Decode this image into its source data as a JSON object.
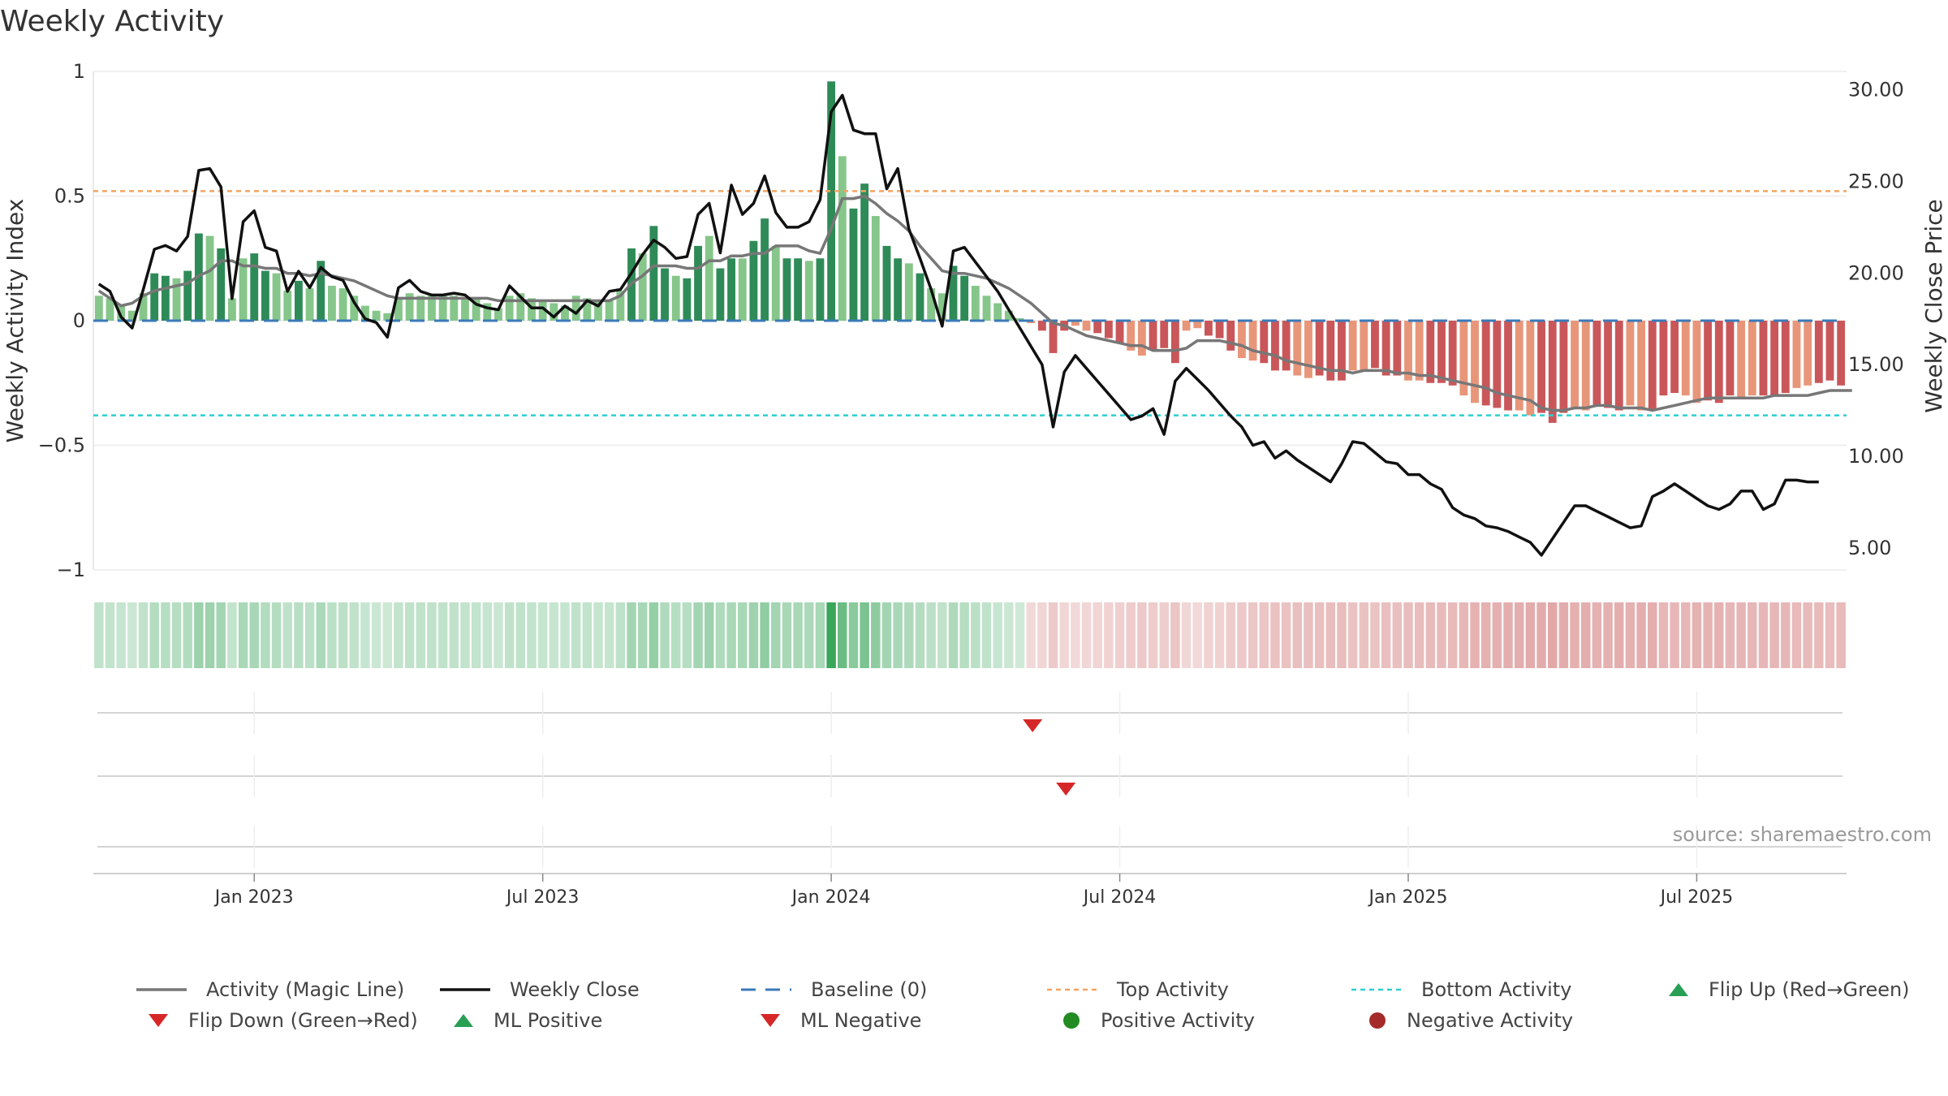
{
  "page": {
    "title": "Weekly Activity",
    "source": "source: sharemaestro.com"
  },
  "chart_data": {
    "type": "bar+line",
    "title": "Weekly Activity",
    "ylabel_left": "Weekly Activity Index",
    "ylabel_right": "Weekly Close Price",
    "ylim_left": [
      -1,
      1
    ],
    "ylim_right": [
      3.8,
      31.0
    ],
    "yticks_left": [
      1,
      0.5,
      0,
      -0.5,
      -1
    ],
    "yticks_left_labels": [
      "1",
      "0.5",
      "0",
      "−0.5",
      "−1"
    ],
    "yticks_right": [
      30,
      25,
      20,
      15,
      10,
      5
    ],
    "yticks_right_labels": [
      "30.00",
      "25.00",
      "20.00",
      "15.00",
      "10.00",
      "5.00"
    ],
    "x_start": "2022-10-03",
    "x_tick_labels": [
      "Jan 2023",
      "Jul 2023",
      "Jan 2024",
      "Jul 2024",
      "Jan 2025",
      "Jul 2025"
    ],
    "x_tick_week_index": [
      14,
      40,
      66,
      92,
      118,
      144
    ],
    "top_activity": 0.52,
    "bottom_activity": -0.38,
    "baseline": 0,
    "activity_index": [
      0.1,
      0.09,
      0.06,
      0.04,
      0.11,
      0.19,
      0.18,
      0.17,
      0.2,
      0.35,
      0.34,
      0.29,
      0.09,
      0.25,
      0.27,
      0.2,
      0.19,
      0.12,
      0.16,
      0.13,
      0.24,
      0.14,
      0.13,
      0.1,
      0.06,
      0.04,
      0.03,
      0.09,
      0.11,
      0.1,
      0.1,
      0.1,
      0.1,
      0.09,
      0.09,
      0.07,
      0.05,
      0.1,
      0.11,
      0.09,
      0.08,
      0.07,
      0.06,
      0.1,
      0.09,
      0.08,
      0.08,
      0.12,
      0.29,
      0.27,
      0.38,
      0.21,
      0.18,
      0.17,
      0.3,
      0.34,
      0.21,
      0.25,
      0.25,
      0.32,
      0.41,
      0.3,
      0.25,
      0.25,
      0.24,
      0.25,
      0.96,
      0.66,
      0.45,
      0.55,
      0.42,
      0.3,
      0.25,
      0.23,
      0.19,
      0.13,
      0.11,
      0.22,
      0.18,
      0.14,
      0.1,
      0.07,
      0.04,
      0.01,
      -0.01,
      -0.04,
      -0.13,
      -0.04,
      -0.02,
      -0.04,
      -0.05,
      -0.07,
      -0.09,
      -0.12,
      -0.14,
      -0.12,
      -0.11,
      -0.17,
      -0.04,
      -0.03,
      -0.06,
      -0.07,
      -0.12,
      -0.15,
      -0.16,
      -0.17,
      -0.2,
      -0.2,
      -0.22,
      -0.23,
      -0.22,
      -0.24,
      -0.24,
      -0.2,
      -0.2,
      -0.19,
      -0.22,
      -0.22,
      -0.24,
      -0.24,
      -0.25,
      -0.25,
      -0.26,
      -0.3,
      -0.33,
      -0.34,
      -0.35,
      -0.36,
      -0.36,
      -0.38,
      -0.37,
      -0.41,
      -0.37,
      -0.35,
      -0.36,
      -0.34,
      -0.35,
      -0.36,
      -0.34,
      -0.36,
      -0.36,
      -0.3,
      -0.29,
      -0.3,
      -0.33,
      -0.32,
      -0.33,
      -0.3,
      -0.31,
      -0.3,
      -0.3,
      -0.3,
      -0.29,
      -0.27,
      -0.26,
      -0.25,
      -0.24,
      -0.26
    ],
    "magic_line": [
      0.12,
      0.09,
      0.06,
      0.07,
      0.1,
      0.12,
      0.13,
      0.14,
      0.15,
      0.18,
      0.2,
      0.24,
      0.24,
      0.22,
      0.22,
      0.21,
      0.21,
      0.19,
      0.19,
      0.18,
      0.19,
      0.18,
      0.17,
      0.16,
      0.14,
      0.12,
      0.1,
      0.09,
      0.09,
      0.09,
      0.09,
      0.09,
      0.09,
      0.09,
      0.09,
      0.09,
      0.08,
      0.08,
      0.08,
      0.08,
      0.08,
      0.08,
      0.08,
      0.08,
      0.08,
      0.08,
      0.08,
      0.1,
      0.15,
      0.18,
      0.22,
      0.22,
      0.22,
      0.21,
      0.21,
      0.24,
      0.24,
      0.26,
      0.26,
      0.27,
      0.27,
      0.3,
      0.3,
      0.3,
      0.28,
      0.27,
      0.37,
      0.49,
      0.49,
      0.5,
      0.47,
      0.43,
      0.4,
      0.36,
      0.3,
      0.25,
      0.2,
      0.19,
      0.19,
      0.18,
      0.17,
      0.15,
      0.13,
      0.1,
      0.07,
      0.03,
      -0.01,
      -0.02,
      -0.04,
      -0.06,
      -0.07,
      -0.08,
      -0.09,
      -0.1,
      -0.1,
      -0.12,
      -0.12,
      -0.12,
      -0.11,
      -0.08,
      -0.08,
      -0.08,
      -0.09,
      -0.1,
      -0.12,
      -0.13,
      -0.14,
      -0.16,
      -0.17,
      -0.18,
      -0.19,
      -0.2,
      -0.2,
      -0.21,
      -0.2,
      -0.2,
      -0.2,
      -0.21,
      -0.21,
      -0.22,
      -0.22,
      -0.23,
      -0.24,
      -0.25,
      -0.26,
      -0.27,
      -0.29,
      -0.3,
      -0.31,
      -0.32,
      -0.35,
      -0.36,
      -0.36,
      -0.35,
      -0.35,
      -0.34,
      -0.34,
      -0.35,
      -0.35,
      -0.35,
      -0.36,
      -0.35,
      -0.34,
      -0.33,
      -0.32,
      -0.31,
      -0.31,
      -0.31,
      -0.31,
      -0.31,
      -0.31,
      -0.3,
      -0.3,
      -0.3,
      -0.3,
      -0.29,
      -0.28,
      -0.28,
      -0.28
    ],
    "weekly_close": [
      19.4,
      19.0,
      17.6,
      17.0,
      19.1,
      21.3,
      21.5,
      21.2,
      22.0,
      25.6,
      25.7,
      24.7,
      18.6,
      22.8,
      23.4,
      21.4,
      21.2,
      19.0,
      20.1,
      19.2,
      20.3,
      19.8,
      19.6,
      18.4,
      17.5,
      17.3,
      16.5,
      19.2,
      19.6,
      19.0,
      18.8,
      18.8,
      18.9,
      18.8,
      18.3,
      18.1,
      18.0,
      19.3,
      18.7,
      18.1,
      18.1,
      17.6,
      18.2,
      17.8,
      18.5,
      18.2,
      19.0,
      19.1,
      20.0,
      21.0,
      21.8,
      21.4,
      20.8,
      20.9,
      23.2,
      23.8,
      21.1,
      24.8,
      23.2,
      23.8,
      25.3,
      23.3,
      22.5,
      22.5,
      22.8,
      24.0,
      28.8,
      29.7,
      27.8,
      27.6,
      27.6,
      24.6,
      25.7,
      22.4,
      20.8,
      19.1,
      17.1,
      21.2,
      21.4,
      20.6,
      19.8,
      19.0,
      18.0,
      17.0,
      16.0,
      15.0,
      11.6,
      14.6,
      15.5,
      14.8,
      14.1,
      13.4,
      12.7,
      12.0,
      12.2,
      12.6,
      11.2,
      14.1,
      14.8,
      14.2,
      13.6,
      12.9,
      12.2,
      11.6,
      10.6,
      10.8,
      9.9,
      10.3,
      9.8,
      9.4,
      9.0,
      8.6,
      9.6,
      10.8,
      10.7,
      10.2,
      9.7,
      9.6,
      9.0,
      9.0,
      8.5,
      8.2,
      7.2,
      6.8,
      6.6,
      6.2,
      6.1,
      5.9,
      5.6,
      5.3,
      4.6,
      5.5,
      6.4,
      7.3,
      7.3,
      7.0,
      6.7,
      6.4,
      6.1,
      6.2,
      7.8,
      8.1,
      8.5,
      8.1,
      7.7,
      7.3,
      7.1,
      7.4,
      8.1,
      8.1,
      7.1,
      7.4,
      8.7,
      8.7,
      8.6,
      8.6
    ],
    "flip_down_week_index": [
      84,
      87
    ],
    "legend": [
      {
        "key": "magic_line",
        "label": "Activity (Magic Line)"
      },
      {
        "key": "weekly_close",
        "label": "Weekly Close"
      },
      {
        "key": "baseline",
        "label": "Baseline (0)"
      },
      {
        "key": "top_activity",
        "label": "Top Activity"
      },
      {
        "key": "bottom_activity",
        "label": "Bottom Activity"
      },
      {
        "key": "flip_up",
        "label": "Flip Up (Red→Green)"
      },
      {
        "key": "flip_down",
        "label": "Flip Down (Green→Red)"
      },
      {
        "key": "ml_positive",
        "label": "ML Positive"
      },
      {
        "key": "ml_negative",
        "label": "ML Negative"
      },
      {
        "key": "positive_activity",
        "label": "Positive Activity"
      },
      {
        "key": "negative_activity",
        "label": "Negative Activity"
      }
    ]
  },
  "colors": {
    "positive_dark": "#2e8b57",
    "positive_light": "#86c68a",
    "negative_dark": "#c9575a",
    "negative_light": "#e8967a",
    "magic_line": "#777777",
    "weekly_close": "#111111",
    "baseline": "#3a7ab8",
    "top_activity": "#f4a460",
    "bottom_activity": "#2ccfd0",
    "flip_up": "#27a055",
    "flip_down": "#d62728",
    "positive_dot": "#228b22",
    "negative_dot": "#a52a2a"
  }
}
